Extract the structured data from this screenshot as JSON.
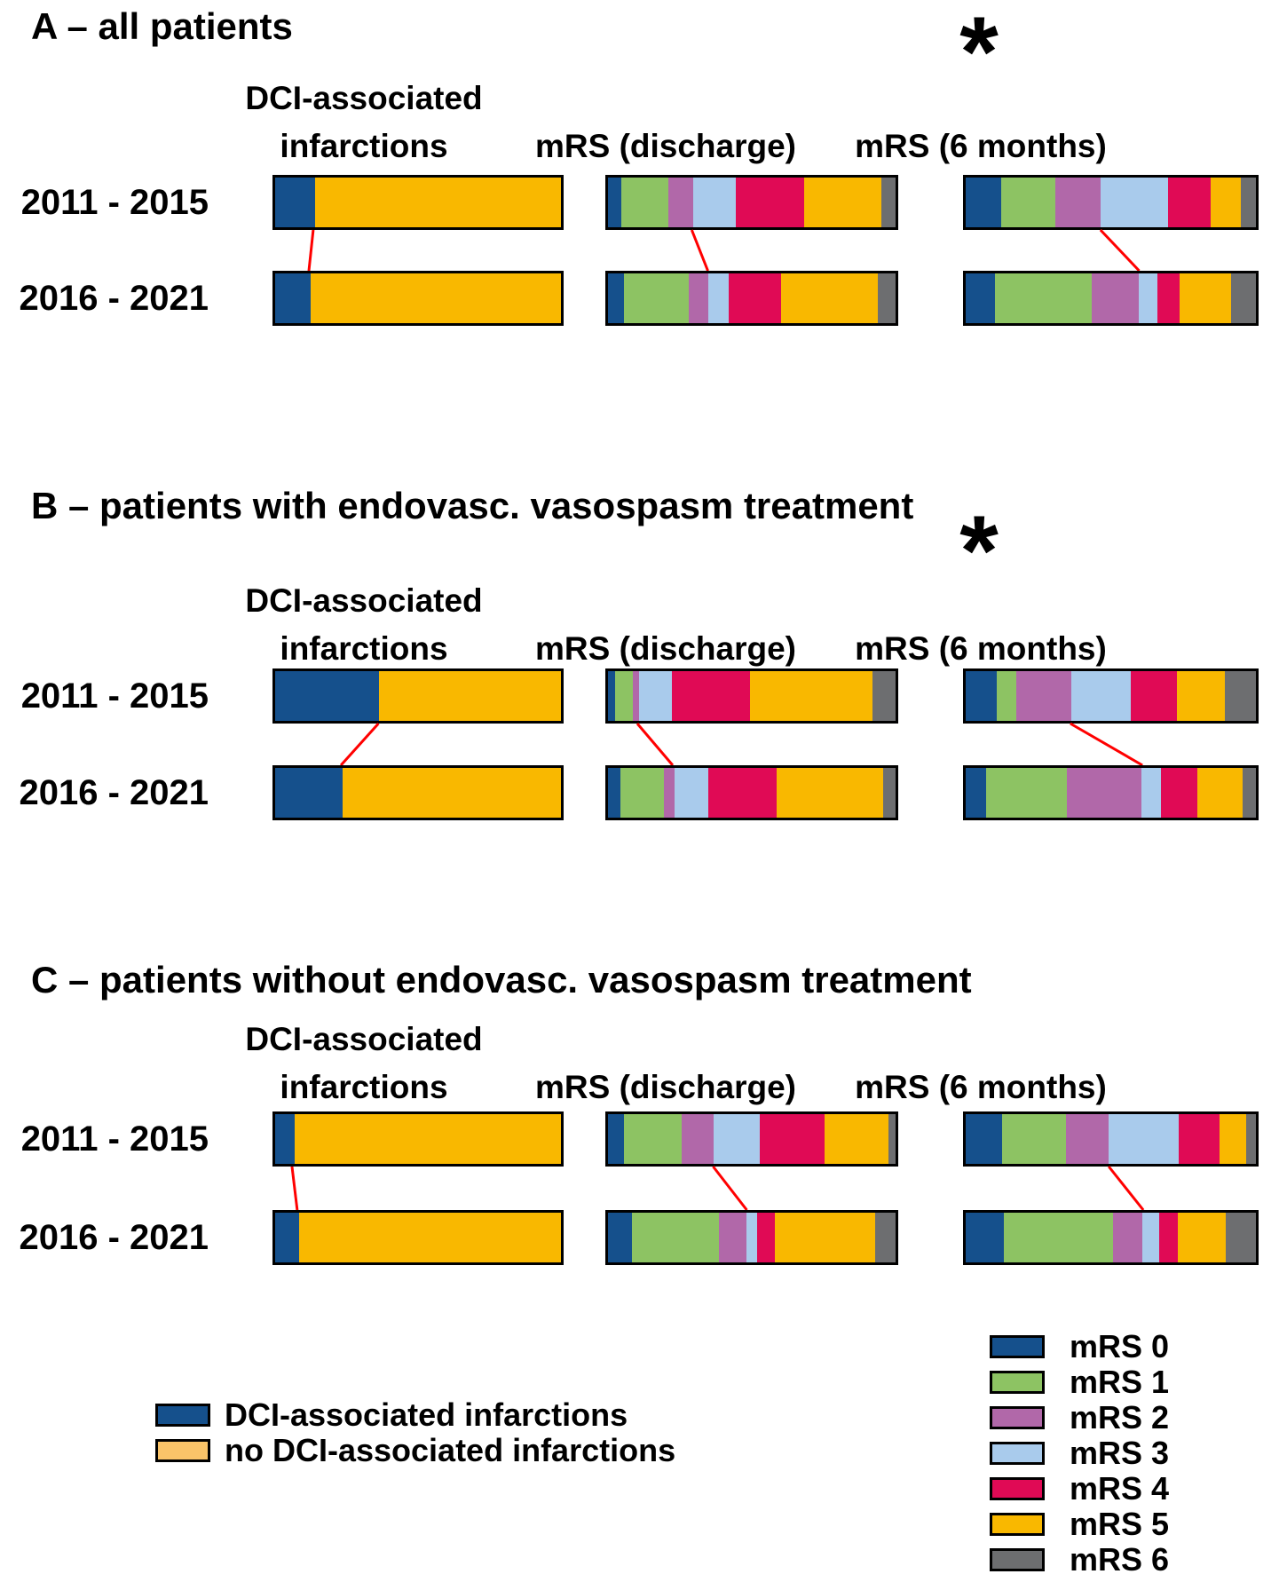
{
  "figure": {
    "asterisk_symbol": "*",
    "row_labels": [
      "2011 - 2015",
      "2016 - 2021"
    ],
    "column_headers": {
      "dci_line1": "DCI-associated",
      "dci_line2": "infarctions",
      "discharge": "mRS (discharge)",
      "six_months": "mRS (6 months)"
    }
  },
  "palette": {
    "mrs": [
      "#15508C",
      "#8DC363",
      "#B168A9",
      "#A9CBEC",
      "#E00A55",
      "#F9B800",
      "#6D6E70"
    ],
    "dci_pair": [
      "#15508C",
      "#F9B800"
    ],
    "no_dci_legend": "#FAC469",
    "connector_line": "#FF0000",
    "bar_border": "#000000"
  },
  "legend_mrs": [
    {
      "label": "mRS 0",
      "color": "#15508C"
    },
    {
      "label": "mRS 1",
      "color": "#8DC363"
    },
    {
      "label": "mRS 2",
      "color": "#B168A9"
    },
    {
      "label": "mRS 3",
      "color": "#A9CBEC"
    },
    {
      "label": "mRS 4",
      "color": "#E00A55"
    },
    {
      "label": "mRS 5",
      "color": "#F9B800"
    },
    {
      "label": "mRS 6",
      "color": "#6D6E70"
    }
  ],
  "legend_dci": [
    {
      "label": "DCI-associated infarctions",
      "color": "#15508C"
    },
    {
      "label": "no DCI-associated infarctions",
      "color": "#FAC469"
    }
  ],
  "chart_data": {
    "type": "bar",
    "subtype": "horizontal-stacked-100pct",
    "unit": "% of patients (visually estimated from bar segment widths)",
    "mrs_categories": [
      "mRS 0",
      "mRS 1",
      "mRS 2",
      "mRS 3",
      "mRS 4",
      "mRS 5",
      "mRS 6"
    ],
    "dci_categories": [
      "DCI-associated infarctions",
      "no DCI-associated infarctions"
    ],
    "rows": [
      "2011 - 2015",
      "2016 - 2021"
    ],
    "connector_note": "red line joins the DCI/no-DCI boundary (DCI charts) or the mRS2/mRS3 boundary (mRS charts) between the two period bars",
    "panels": [
      {
        "id": "A",
        "title": "A – all patients",
        "asterisk_on_six_months": true,
        "dci": {
          "values": [
            [
              14.0,
              86.0
            ],
            [
              12.5,
              87.5
            ]
          ],
          "link": [
            14.0,
            12.5
          ]
        },
        "discharge": {
          "values": [
            [
              4.6,
              16.5,
              8.4,
              14.8,
              23.8,
              27.1,
              4.8
            ],
            [
              5.6,
              22.4,
              7.0,
              7.0,
              18.2,
              33.6,
              6.2
            ]
          ],
          "link": [
            29.5,
            35.0
          ]
        },
        "six_months": {
          "values": [
            [
              12.1,
              18.7,
              15.7,
              23.2,
              14.6,
              10.6,
              5.1
            ],
            [
              10.1,
              33.3,
              16.2,
              6.6,
              7.6,
              17.7,
              8.5
            ]
          ],
          "link": [
            46.5,
            59.6
          ]
        }
      },
      {
        "id": "B",
        "title": "B – patients with endovasc. vasospasm treatment",
        "asterisk_on_six_months": true,
        "dci": {
          "values": [
            [
              36.4,
              63.6
            ],
            [
              23.5,
              76.5
            ]
          ],
          "link": [
            36.4,
            23.5
          ]
        },
        "discharge": {
          "values": [
            [
              2.4,
              6.3,
              2.2,
              11.2,
              27.3,
              42.6,
              8.0
            ],
            [
              4.3,
              15.2,
              3.5,
              11.9,
              23.7,
              37.2,
              4.2
            ]
          ],
          "link": [
            10.9,
            23.0
          ]
        },
        "six_months": {
          "values": [
            [
              10.6,
              6.7,
              19.0,
              20.5,
              16.0,
              16.5,
              10.7
            ],
            [
              6.9,
              28.0,
              25.8,
              6.6,
              12.6,
              15.4,
              4.7
            ]
          ],
          "link": [
            36.3,
            60.7
          ]
        }
      },
      {
        "id": "C",
        "title": "C – patients without endovasc. vasospasm treatment",
        "asterisk_on_six_months": false,
        "dci": {
          "values": [
            [
              6.7,
              93.3
            ],
            [
              8.5,
              91.5
            ]
          ],
          "link": [
            6.7,
            8.5
          ]
        },
        "discharge": {
          "values": [
            [
              5.7,
              19.8,
              11.3,
              16.0,
              22.4,
              22.2,
              2.6
            ],
            [
              8.2,
              30.4,
              9.7,
              3.6,
              6.1,
              34.9,
              7.1
            ]
          ],
          "link": [
            36.8,
            48.3
          ]
        },
        "six_months": {
          "values": [
            [
              12.5,
              22.1,
              14.7,
              24.2,
              14.0,
              9.2,
              3.3
            ],
            [
              13.2,
              37.6,
              10.2,
              5.6,
              6.4,
              16.6,
              10.4
            ]
          ],
          "link": [
            49.3,
            61.0
          ]
        }
      }
    ]
  }
}
